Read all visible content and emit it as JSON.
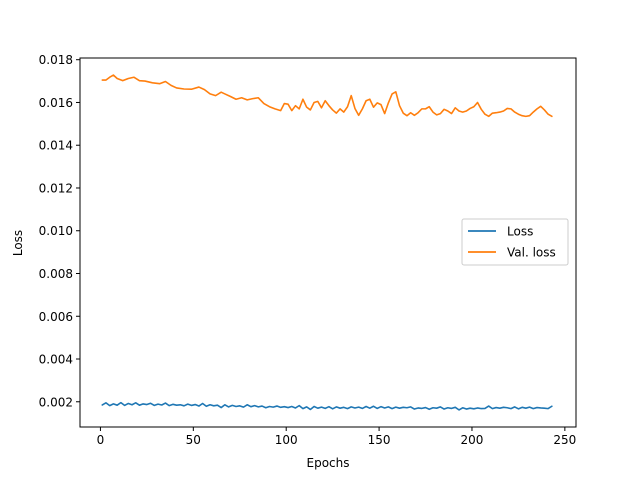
{
  "chart_data": {
    "type": "line",
    "title": "",
    "xlabel": "Epochs",
    "ylabel": "Loss",
    "xlim": [
      -11,
      256
    ],
    "ylim": [
      0.00082,
      0.01808
    ],
    "xticks": [
      0,
      50,
      100,
      150,
      200,
      250
    ],
    "xtick_labels": [
      "0",
      "50",
      "100",
      "150",
      "200",
      "250"
    ],
    "yticks": [
      0.002,
      0.004,
      0.006,
      0.008,
      0.01,
      0.012,
      0.014,
      0.016,
      0.018
    ],
    "ytick_labels": [
      "0.002",
      "0.004",
      "0.006",
      "0.008",
      "0.010",
      "0.012",
      "0.014",
      "0.016",
      "0.018"
    ],
    "grid": false,
    "legend_position": "center-right",
    "series": [
      {
        "name": "Loss",
        "color": "#1f77b4",
        "x": [
          1,
          3,
          5,
          7,
          9,
          11,
          13,
          15,
          17,
          19,
          21,
          23,
          25,
          27,
          29,
          31,
          33,
          35,
          37,
          39,
          41,
          43,
          45,
          47,
          49,
          51,
          53,
          55,
          57,
          59,
          61,
          63,
          65,
          67,
          69,
          71,
          73,
          75,
          77,
          79,
          81,
          83,
          85,
          87,
          89,
          91,
          93,
          95,
          97,
          99,
          101,
          103,
          105,
          107,
          109,
          111,
          113,
          115,
          117,
          119,
          121,
          123,
          125,
          127,
          129,
          131,
          133,
          135,
          137,
          139,
          141,
          143,
          145,
          147,
          149,
          151,
          153,
          155,
          157,
          159,
          161,
          163,
          165,
          167,
          169,
          171,
          173,
          175,
          177,
          179,
          181,
          183,
          185,
          187,
          189,
          191,
          193,
          195,
          197,
          199,
          201,
          203,
          205,
          207,
          209,
          211,
          213,
          215,
          217,
          219,
          221,
          223,
          225,
          227,
          229,
          231,
          233,
          235,
          237,
          239,
          241,
          243
        ],
        "y": [
          0.00185,
          0.00195,
          0.00182,
          0.0019,
          0.00184,
          0.00196,
          0.00183,
          0.00192,
          0.00186,
          0.00195,
          0.00184,
          0.0019,
          0.00187,
          0.00193,
          0.00183,
          0.00189,
          0.00185,
          0.00194,
          0.00182,
          0.00188,
          0.00184,
          0.00186,
          0.00181,
          0.00189,
          0.00183,
          0.00187,
          0.0018,
          0.00192,
          0.00179,
          0.00186,
          0.00181,
          0.00184,
          0.00173,
          0.00186,
          0.00176,
          0.00183,
          0.00178,
          0.00181,
          0.00175,
          0.00186,
          0.00177,
          0.00182,
          0.00176,
          0.0018,
          0.00172,
          0.00178,
          0.00175,
          0.0018,
          0.00174,
          0.00177,
          0.00173,
          0.00178,
          0.00171,
          0.00182,
          0.00168,
          0.00176,
          0.00164,
          0.00178,
          0.0017,
          0.00175,
          0.00169,
          0.00177,
          0.00167,
          0.00176,
          0.0017,
          0.00174,
          0.00168,
          0.00176,
          0.00171,
          0.00175,
          0.00169,
          0.00178,
          0.0017,
          0.00179,
          0.00169,
          0.00177,
          0.00171,
          0.00176,
          0.00168,
          0.00175,
          0.0017,
          0.00174,
          0.00172,
          0.00176,
          0.00166,
          0.00171,
          0.00169,
          0.00173,
          0.00165,
          0.00172,
          0.0017,
          0.00176,
          0.00166,
          0.00172,
          0.00169,
          0.00174,
          0.00162,
          0.00172,
          0.00166,
          0.0017,
          0.00167,
          0.00171,
          0.00168,
          0.00169,
          0.0018,
          0.00168,
          0.00173,
          0.0017,
          0.00174,
          0.00172,
          0.00168,
          0.00176,
          0.00167,
          0.00174,
          0.0017,
          0.00175,
          0.00168,
          0.00173,
          0.00171,
          0.0017,
          0.00168,
          0.00179
        ]
      },
      {
        "name": "Val. loss",
        "color": "#ff7f0e",
        "x": [
          1,
          3,
          5,
          7,
          9,
          12,
          15,
          18,
          21,
          24,
          28,
          32,
          35,
          38,
          41,
          45,
          49,
          53,
          56,
          59,
          62,
          65,
          67,
          70,
          73,
          76,
          79,
          82,
          85,
          88,
          91,
          94,
          97,
          99,
          101,
          103,
          105,
          107,
          109,
          111,
          113,
          115,
          117,
          119,
          121,
          123,
          125,
          127,
          129,
          131,
          133,
          135,
          137,
          139,
          141,
          143,
          145,
          147,
          149,
          151,
          153,
          155,
          157,
          159,
          161,
          163,
          165,
          167,
          169,
          171,
          173,
          175,
          177,
          179,
          181,
          183,
          185,
          187,
          189,
          191,
          193,
          195,
          197,
          199,
          201,
          203,
          205,
          207,
          209,
          211,
          213,
          215,
          217,
          219,
          221,
          223,
          225,
          227,
          229,
          231,
          233,
          235,
          237,
          239,
          241,
          243
        ],
        "y": [
          0.01705,
          0.01705,
          0.01718,
          0.01728,
          0.01712,
          0.01702,
          0.01712,
          0.01718,
          0.01702,
          0.017,
          0.01692,
          0.01688,
          0.01698,
          0.0168,
          0.01668,
          0.01663,
          0.01662,
          0.01672,
          0.0166,
          0.0164,
          0.01632,
          0.01648,
          0.0164,
          0.01628,
          0.01615,
          0.01622,
          0.01612,
          0.01618,
          0.01622,
          0.01595,
          0.0158,
          0.0157,
          0.01562,
          0.01595,
          0.01592,
          0.01562,
          0.01585,
          0.0157,
          0.01615,
          0.01578,
          0.01565,
          0.016,
          0.01605,
          0.01575,
          0.01608,
          0.01585,
          0.01565,
          0.0155,
          0.0157,
          0.01555,
          0.0158,
          0.01632,
          0.01572,
          0.0154,
          0.0157,
          0.01608,
          0.01615,
          0.01578,
          0.01598,
          0.0159,
          0.01548,
          0.01598,
          0.0164,
          0.0165,
          0.01585,
          0.0155,
          0.01538,
          0.01552,
          0.0154,
          0.01552,
          0.0157,
          0.0157,
          0.0158,
          0.01555,
          0.01542,
          0.01548,
          0.01568,
          0.0156,
          0.01548,
          0.01575,
          0.0156,
          0.01555,
          0.0156,
          0.01572,
          0.0158,
          0.016,
          0.01568,
          0.01545,
          0.01535,
          0.0155,
          0.01552,
          0.01555,
          0.0156,
          0.01572,
          0.0157,
          0.01555,
          0.01545,
          0.01538,
          0.01535,
          0.01538,
          0.01555,
          0.0157,
          0.01582,
          0.01565,
          0.01545,
          0.01535
        ]
      }
    ]
  }
}
